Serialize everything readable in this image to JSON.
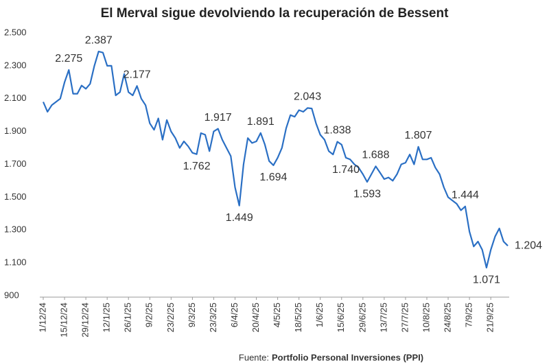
{
  "chart_data": {
    "type": "line",
    "title": "El Merval sigue devolviendo la recuperación de Bessent",
    "source_prefix": "Fuente:",
    "source": "Portfolio Personal Inversiones (PPI)",
    "categories": [
      "1/12/24",
      null,
      null,
      null,
      null,
      "15/12/24",
      null,
      null,
      null,
      null,
      "29/12/24",
      null,
      null,
      null,
      null,
      "12/1/25",
      null,
      null,
      null,
      null,
      "26/1/25",
      null,
      null,
      null,
      null,
      "9/2/25",
      null,
      null,
      null,
      null,
      "23/2/25",
      null,
      null,
      null,
      null,
      "9/3/25",
      null,
      null,
      null,
      null,
      "23/3/25",
      null,
      null,
      null,
      null,
      "6/4/25",
      null,
      null,
      null,
      null,
      "20/4/25",
      null,
      null,
      null,
      null,
      "4/5/25",
      null,
      null,
      null,
      null,
      "18/5/25",
      null,
      null,
      null,
      null,
      "1/6/25",
      null,
      null,
      null,
      null,
      "15/6/25",
      null,
      null,
      null,
      null,
      "29/6/25",
      null,
      null,
      null,
      null,
      "13/7/25",
      null,
      null,
      null,
      null,
      "27/7/25",
      null,
      null,
      null,
      null,
      "10/8/25",
      null,
      null,
      null,
      null,
      "24/8/25",
      null,
      null,
      null,
      null,
      "7/9/25",
      null,
      null,
      null,
      null,
      "21/9/25",
      null,
      null,
      null,
      null
    ],
    "series": [
      {
        "name": "Merval",
        "color": "#2a6fc4",
        "values": [
          2080,
          2020,
          2060,
          2080,
          2100,
          2200,
          2275,
          2130,
          2130,
          2180,
          2160,
          2190,
          2300,
          2387,
          2380,
          2300,
          2300,
          2120,
          2140,
          2250,
          2140,
          2120,
          2177,
          2100,
          2060,
          1950,
          1910,
          1980,
          1850,
          1970,
          1900,
          1860,
          1800,
          1840,
          1810,
          1770,
          1762,
          1890,
          1880,
          1780,
          1900,
          1917,
          1850,
          1800,
          1750,
          1560,
          1449,
          1700,
          1860,
          1830,
          1840,
          1891,
          1820,
          1720,
          1694,
          1740,
          1800,
          1920,
          2000,
          1990,
          2030,
          2020,
          2043,
          2040,
          1950,
          1880,
          1850,
          1780,
          1760,
          1838,
          1820,
          1740,
          1730,
          1700,
          1680,
          1640,
          1593,
          1640,
          1688,
          1650,
          1610,
          1620,
          1600,
          1640,
          1700,
          1710,
          1760,
          1700,
          1807,
          1730,
          1730,
          1740,
          1680,
          1640,
          1560,
          1500,
          1480,
          1460,
          1420,
          1444,
          1290,
          1200,
          1230,
          1180,
          1071,
          1180,
          1260,
          1310,
          1230,
          1204
        ],
        "value_labels": [
          null,
          null,
          null,
          null,
          null,
          null,
          "2.275",
          null,
          null,
          null,
          null,
          null,
          null,
          "2.387",
          null,
          null,
          null,
          null,
          null,
          null,
          null,
          null,
          "2.177",
          null,
          null,
          null,
          null,
          null,
          null,
          null,
          null,
          null,
          null,
          null,
          null,
          null,
          "1.762",
          null,
          null,
          null,
          null,
          "1.917",
          null,
          null,
          null,
          null,
          "1.449",
          null,
          null,
          null,
          null,
          "1.891",
          null,
          null,
          "1.694",
          null,
          null,
          null,
          null,
          null,
          null,
          null,
          "2.043",
          null,
          null,
          null,
          null,
          null,
          null,
          "1.838",
          null,
          "1.740",
          null,
          null,
          null,
          null,
          "1.593",
          null,
          "1.688",
          null,
          null,
          null,
          null,
          null,
          null,
          null,
          null,
          null,
          "1.807",
          null,
          null,
          null,
          null,
          null,
          null,
          null,
          null,
          null,
          null,
          "1.444",
          null,
          null,
          null,
          null,
          "1.071",
          null,
          null,
          null,
          null,
          "1.204"
        ]
      }
    ],
    "ylim": [
      900,
      2500
    ],
    "yticks": [
      900,
      {
        "value": 1100,
        "label": "1.100"
      },
      {
        "value": 1300,
        "label": "1.300"
      },
      {
        "value": 1500,
        "label": "1.500"
      },
      {
        "value": 1700,
        "label": "1.700"
      },
      {
        "value": 1900,
        "label": "1.900"
      },
      {
        "value": 2100,
        "label": "2.100"
      },
      {
        "value": 2300,
        "label": "2.300"
      },
      {
        "value": 2500,
        "label": "2.500"
      }
    ]
  }
}
